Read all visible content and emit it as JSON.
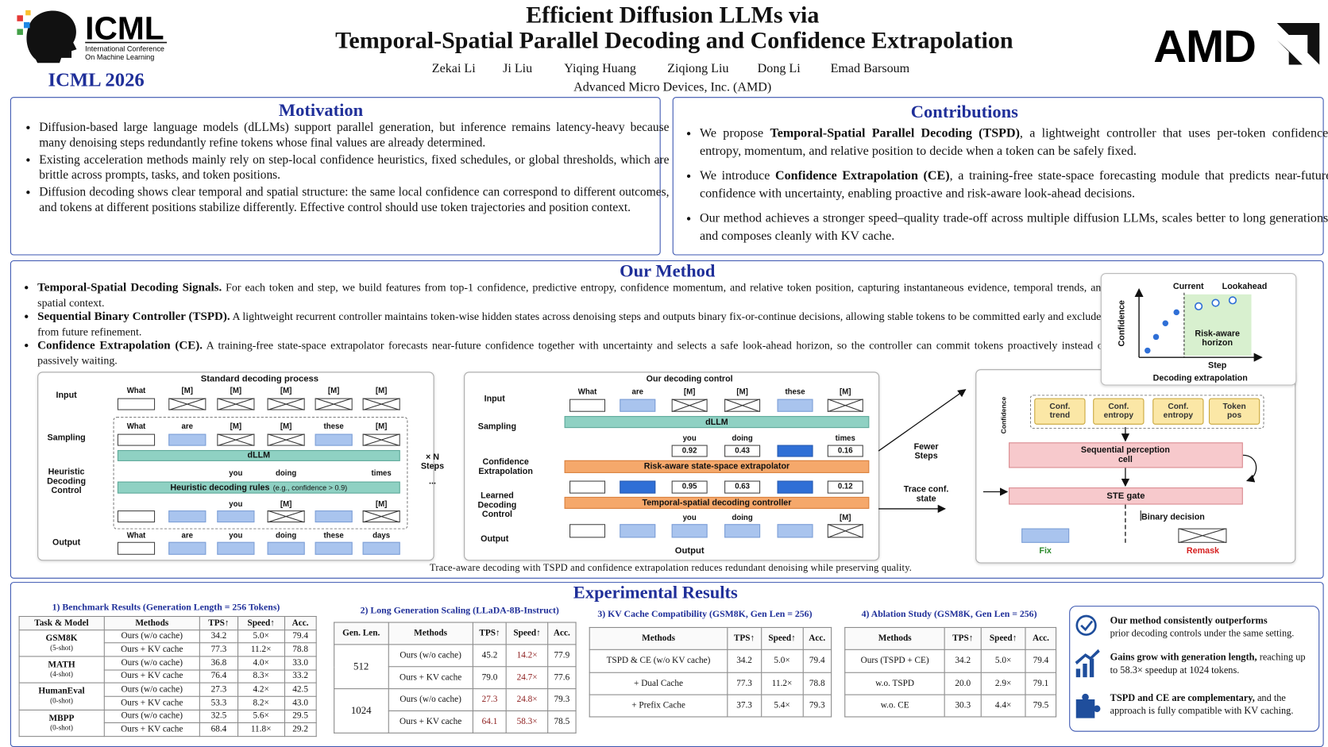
{
  "header": {
    "logo_title": "ICML",
    "logo_subtitle_1": "International Conference",
    "logo_subtitle_2": "On Machine Learning",
    "conference": "ICML 2026",
    "title_1": "Efficient Diffusion LLMs via",
    "title_2": "Temporal-Spatial Parallel Decoding and Confidence Extrapolation",
    "authors": [
      "Zekai Li",
      "Ji Liu",
      "Yiqing Huang",
      "Ziqiong Liu",
      "Dong Li",
      "Emad Barsoum"
    ],
    "affiliation": "Advanced Micro Devices, Inc. (AMD)",
    "company_logo": "AMD"
  },
  "motivation": {
    "title": "Motivation",
    "items": [
      "Diffusion-based large language models (dLLMs) support parallel generation, but inference remains latency-heavy because many denoising steps redundantly refine tokens whose final values are already determined.",
      "Existing acceleration methods mainly rely on step-local confidence heuristics, fixed schedules, or global thresholds, which are brittle across prompts, tasks, and token positions.",
      "Diffusion decoding shows clear temporal and spatial structure: the same local confidence can correspond to different outcomes, and tokens at different positions stabilize differently. Effective control should use token trajectories and position context."
    ]
  },
  "contributions": {
    "title": "Contributions",
    "items": [
      [
        "We propose ",
        "Temporal-Spatial Parallel Decoding (TSPD)",
        ", a lightweight controller that uses per-token confidence, entropy, momentum, and relative position to decide when a token can be safely fixed."
      ],
      [
        "We introduce ",
        "Confidence Extrapolation (CE)",
        ", a training-free state-space forecasting module that predicts near-future confidence with uncertainty, enabling proactive and risk-aware look-ahead decisions."
      ],
      "Our method achieves a stronger speed–quality trade-off across multiple diffusion LLMs, scales better to long generations, and composes cleanly with KV cache."
    ]
  },
  "method": {
    "title": "Our Method",
    "items": [
      [
        "Temporal-Spatial Decoding Signals.",
        " For each token and step, we build features from top-1 confidence, predictive entropy, confidence momentum, and relative token position, capturing instantaneous evidence, temporal trends, and spatial context."
      ],
      [
        "Sequential Binary Controller (TSPD).",
        " A lightweight recurrent controller maintains token-wise hidden states across denoising steps and outputs binary fix-or-continue decisions, allowing stable tokens to be committed early and excluded from future refinement."
      ],
      [
        "Confidence Extrapolation (CE).",
        " A training-free state-space extrapolator forecasts near-future confidence together with uncertainty and selects a safe look-ahead horizon, so the controller can commit tokens proactively instead of passively waiting."
      ]
    ],
    "standard": {
      "title": "Standard decoding process",
      "row_labels": [
        "Input",
        "Sampling",
        "Heuristic Decoding Control",
        "Output"
      ],
      "input_tokens": [
        "What",
        "[M]",
        "[M]",
        "[M]",
        "[M]",
        "[M]"
      ],
      "sampling_tokens": [
        "What",
        "are",
        "[M]",
        "[M]",
        "these",
        "[M]"
      ],
      "model": "dLLM",
      "model_out": [
        "you",
        "doing",
        "times"
      ],
      "rule": "Heuristic decoding rules",
      "rule_note": "(e.g., confidence > 0.9)",
      "rule_out": [
        "you",
        "[M]",
        "[M]"
      ],
      "output_tokens": [
        "What",
        "are",
        "you",
        "doing",
        "these",
        "days"
      ],
      "repeat": "× N Steps",
      "ellipsis": "..."
    },
    "ours": {
      "title": "Our decoding control",
      "row_labels": [
        "Input",
        "Sampling",
        "Confidence Extrapolation",
        "Learned Decoding Control",
        "Output"
      ],
      "input_tokens": [
        "What",
        "are",
        "[M]",
        "[M]",
        "these",
        "[M]"
      ],
      "model": "dLLM",
      "model_out": [
        "you",
        "doing",
        "times"
      ],
      "confidences": [
        0.92,
        0.43,
        0.16
      ],
      "extrapolator": "Risk-aware state-space extrapolator",
      "extrapolated": [
        0.95,
        0.63,
        0.12
      ],
      "controller": "Temporal-spatial decoding controller",
      "controller_out": [
        "you",
        "doing",
        "[M]"
      ],
      "output": "Output"
    },
    "arrows": {
      "fewer": "Fewer Steps",
      "trace": "Trace conf. state"
    },
    "perception": {
      "axis": "Confidence",
      "features": [
        "Conf. trend",
        "Conf. entropy",
        "Conf. entropy",
        "Token pos"
      ],
      "cell": "Sequential perception cell",
      "gate": "STE gate",
      "decision": "Binary decision",
      "fix": "Fix",
      "remask": "Remask"
    },
    "extrapolation": {
      "current": "Current",
      "lookahead": "Lookahead",
      "horizon": "Risk-aware horizon",
      "x_label": "Step",
      "y_label": "Confidence",
      "title": "Decoding extrapolation"
    },
    "caption": "Trace-aware decoding with TSPD and confidence extrapolation reduces redundant denoising while preserving quality."
  },
  "results": {
    "title": "Experimental Results",
    "benchmark": {
      "title": "1) Benchmark Results (Generation Length = 256 Tokens)",
      "header": [
        "Task & Model",
        "Methods",
        "TPS↑",
        "Speed↑",
        "Acc."
      ],
      "groups": [
        {
          "task": "GSM8K",
          "shot": "(5-shot)",
          "rows": [
            [
              "Ours (w/o cache)",
              "34.2",
              "5.0×",
              "79.4"
            ],
            [
              "Ours + KV cache",
              "77.3",
              "11.2×",
              "78.8"
            ]
          ]
        },
        {
          "task": "MATH",
          "shot": "(4-shot)",
          "rows": [
            [
              "Ours (w/o cache)",
              "36.8",
              "4.0×",
              "33.0"
            ],
            [
              "Ours + KV cache",
              "76.4",
              "8.3×",
              "33.2"
            ]
          ]
        },
        {
          "task": "HumanEval",
          "shot": "(0-shot)",
          "rows": [
            [
              "Ours (w/o cache)",
              "27.3",
              "4.2×",
              "42.5"
            ],
            [
              "Ours + KV cache",
              "53.3",
              "8.2×",
              "43.0"
            ]
          ]
        },
        {
          "task": "MBPP",
          "shot": "(0-shot)",
          "rows": [
            [
              "Ours (w/o cache)",
              "32.5",
              "5.6×",
              "29.5"
            ],
            [
              "Ours + KV cache",
              "68.4",
              "11.8×",
              "29.2"
            ]
          ]
        }
      ]
    },
    "scaling": {
      "title": "2) Long Generation Scaling (LLaDA-8B-Instruct)",
      "header": [
        "Gen. Len.",
        "Methods",
        "TPS↑",
        "Speed↑",
        "Acc."
      ],
      "groups": [
        {
          "len": "512",
          "rows": [
            [
              "Ours (w/o cache)",
              "45.2",
              "14.2×",
              "77.9"
            ],
            [
              "Ours + KV cache",
              "79.0",
              "24.7×",
              "77.6"
            ]
          ]
        },
        {
          "len": "1024",
          "rows": [
            [
              "Ours (w/o cache)",
              "27.3",
              "24.8×",
              "79.3"
            ],
            [
              "Ours + KV cache",
              "64.1",
              "58.3×",
              "78.5"
            ]
          ]
        }
      ]
    },
    "kv": {
      "title": "3) KV Cache Compatibility (GSM8K, Gen Len = 256)",
      "header": [
        "Methods",
        "TPS↑",
        "Speed↑",
        "Acc."
      ],
      "rows": [
        [
          "TSPD & CE (w/o KV cache)",
          "34.2",
          "5.0×",
          "79.4"
        ],
        [
          "+ Dual Cache",
          "77.3",
          "11.2×",
          "78.8"
        ],
        [
          "+ Prefix Cache",
          "37.3",
          "5.4×",
          "79.3"
        ]
      ]
    },
    "ablation": {
      "title": "4) Ablation Study (GSM8K, Gen Len = 256)",
      "header": [
        "Methods",
        "TPS↑",
        "Speed↑",
        "Acc."
      ],
      "rows": [
        [
          "Ours (TSPD + CE)",
          "34.2",
          "5.0×",
          "79.4"
        ],
        [
          "w.o. TSPD",
          "20.0",
          "2.9×",
          "79.1"
        ],
        [
          "w.o. CE",
          "30.3",
          "4.4×",
          "79.5"
        ]
      ]
    },
    "summary": [
      {
        "bold": "Our method consistently outperforms",
        "text": "prior decoding controls under the same setting."
      },
      {
        "bold": "Gains grow with generation length,",
        "text": " reaching up to 58.3× speedup at 1024 tokens."
      },
      {
        "bold": "TSPD and CE are complementary,",
        "text": " and the approach is fully compatible with KV caching."
      }
    ]
  }
}
